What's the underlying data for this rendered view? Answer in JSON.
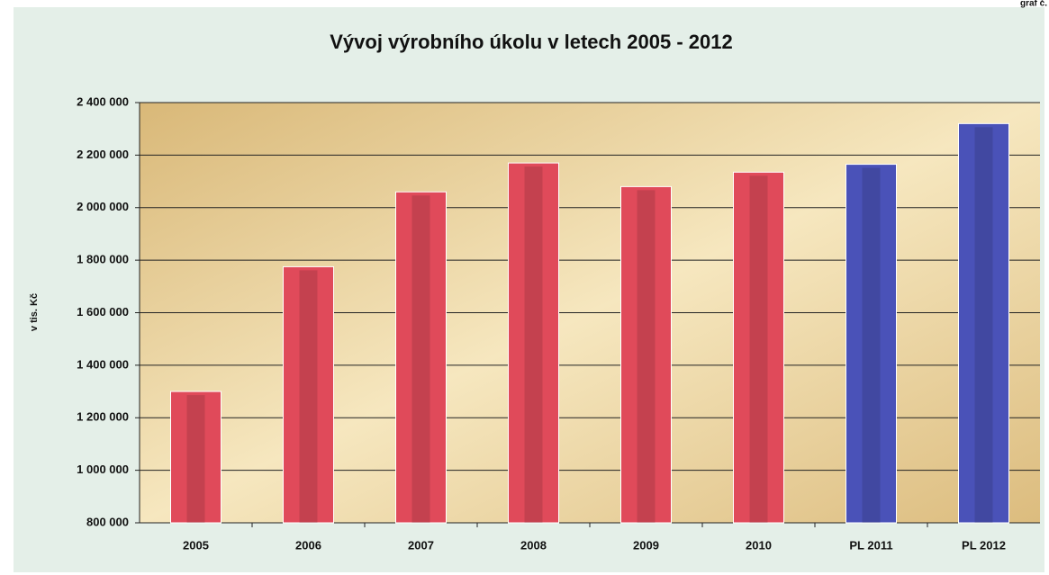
{
  "chart_data": {
    "type": "bar",
    "page_label": "graf č.",
    "title": "Vývoj výrobního úkolu v letech 2005 - 2012",
    "y_label": "v tis. Kč",
    "categories": [
      "2005",
      "2006",
      "2007",
      "2008",
      "2009",
      "2010",
      "PL 2011",
      "PL 2012"
    ],
    "values": [
      1300000,
      1775000,
      2060000,
      2170000,
      2080000,
      2135000,
      2165000,
      2320000
    ],
    "colors": [
      "#e04a5a",
      "#e04a5a",
      "#e04a5a",
      "#e04a5a",
      "#e04a5a",
      "#e04a5a",
      "#4a52b8",
      "#4a52b8"
    ],
    "ylim": [
      800000,
      2400000
    ],
    "yticks": [
      {
        "value": 800000,
        "label": "800 000"
      },
      {
        "value": 1000000,
        "label": "1 000 000"
      },
      {
        "value": 1200000,
        "label": "1 200 000"
      },
      {
        "value": 1400000,
        "label": "1 400 000"
      },
      {
        "value": 1600000,
        "label": "1 600 000"
      },
      {
        "value": 1800000,
        "label": "1 800 000"
      },
      {
        "value": 2000000,
        "label": "2 000 000"
      },
      {
        "value": 2200000,
        "label": "2 200 000"
      },
      {
        "value": 2400000,
        "label": "2 400 000"
      }
    ],
    "grid": true
  }
}
